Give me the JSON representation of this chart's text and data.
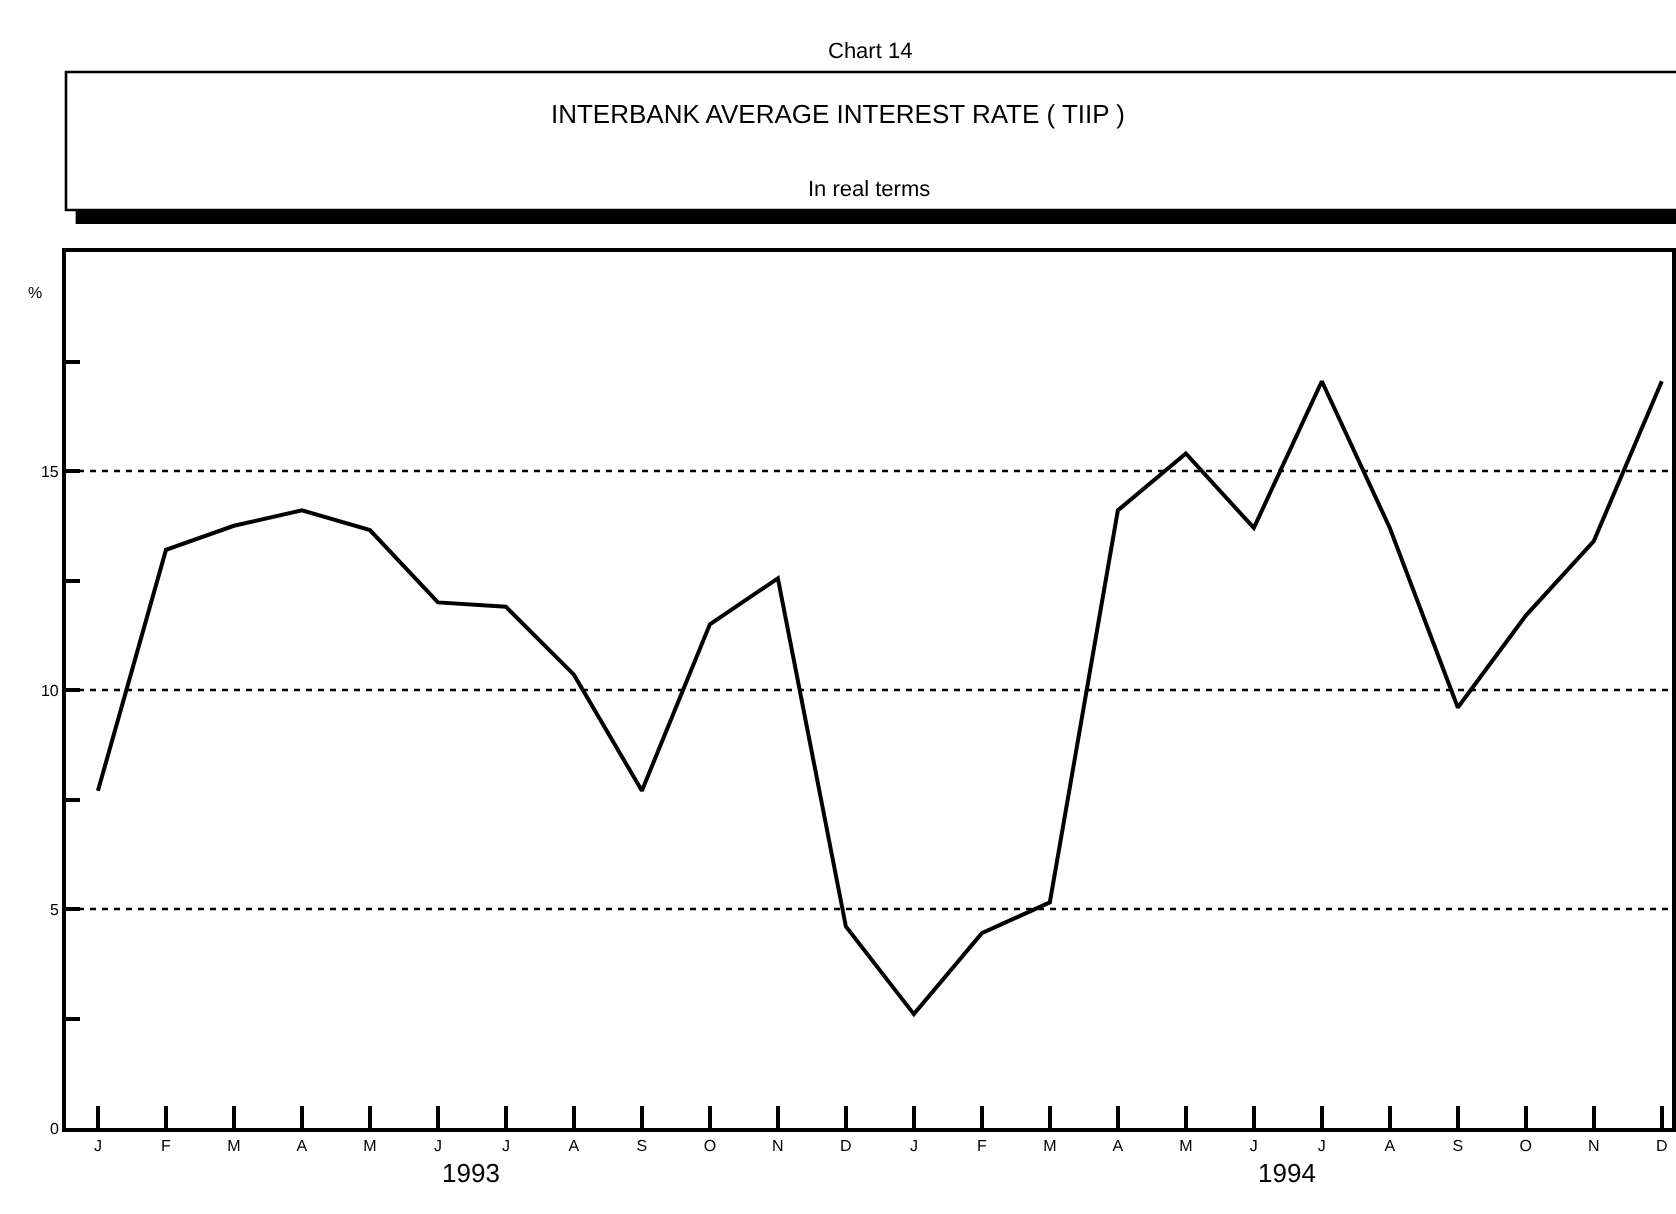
{
  "chart_data": {
    "type": "line",
    "title": "INTERBANK AVERAGE INTEREST RATE ( TIIP )",
    "subtitle": "In real terms",
    "ylabel": "%",
    "annotations": [
      "Chart 14",
      "1993",
      "1994"
    ],
    "categories": [
      "J",
      "F",
      "M",
      "A",
      "M",
      "J",
      "J",
      "A",
      "S",
      "O",
      "N",
      "D",
      "J",
      "F",
      "M",
      "A",
      "M",
      "J",
      "J",
      "A",
      "S",
      "O",
      "N",
      "D"
    ],
    "series": [
      {
        "color": "#000000",
        "values": [
          7.7,
          13.2,
          13.75,
          14.1,
          13.65,
          12.0,
          11.9,
          10.35,
          7.7,
          11.5,
          12.55,
          4.6,
          2.6,
          4.45,
          5.15,
          14.1,
          15.4,
          13.7,
          17.05,
          13.7,
          9.6,
          11.7,
          13.4,
          17.05
        ]
      }
    ],
    "ylim": [
      0,
      20
    ],
    "yticks": [
      0,
      {
        "value": 2.5,
        "label": null
      },
      5,
      {
        "value": 7.5,
        "label": null
      },
      10,
      {
        "value": 12.5,
        "label": null
      },
      15,
      {
        "value": 17.5,
        "label": null
      }
    ],
    "grid": "y",
    "marker": "none",
    "line_style": "solid"
  }
}
